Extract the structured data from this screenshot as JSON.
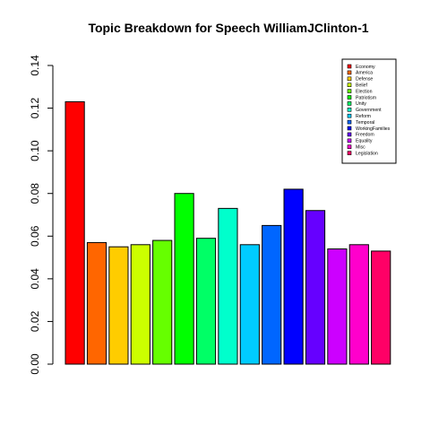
{
  "chart_data": {
    "type": "bar",
    "title": "Topic Breakdown for Speech WilliamJClinton-1",
    "xlabel": "",
    "ylabel": "",
    "ylim": [
      0,
      0.14
    ],
    "yticks": [
      "0.00",
      "0.02",
      "0.04",
      "0.06",
      "0.08",
      "0.10",
      "0.12",
      "0.14"
    ],
    "categories": [
      "Economy",
      "America",
      "Defense",
      "Belief",
      "Election",
      "Patriotism",
      "Unity",
      "Government",
      "Reform",
      "Temporal",
      "WorkingFamilies",
      "Freedom",
      "Equality",
      "Misc",
      "Legislation"
    ],
    "values": [
      0.123,
      0.057,
      0.055,
      0.056,
      0.058,
      0.08,
      0.059,
      0.073,
      0.056,
      0.065,
      0.082,
      0.072,
      0.054,
      0.056,
      0.053
    ],
    "colors": [
      "#FF0000",
      "#FF6600",
      "#FFCC00",
      "#CCFF00",
      "#66FF00",
      "#00FF00",
      "#00FF66",
      "#00FFCC",
      "#00CCFF",
      "#0066FF",
      "#0000FF",
      "#6600FF",
      "#CC00FF",
      "#FF00CC",
      "#FF0066"
    ],
    "grid": false,
    "legend_position": "top-right"
  }
}
